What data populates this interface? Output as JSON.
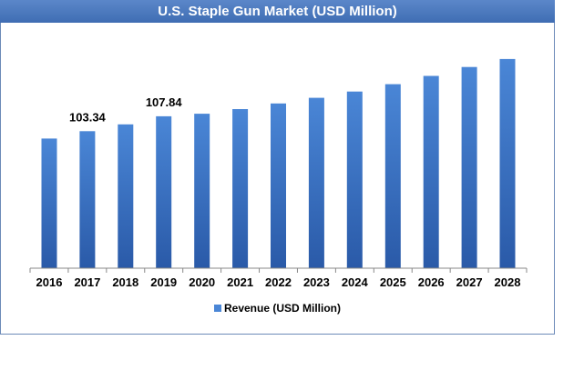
{
  "chart_data": {
    "type": "bar",
    "title": "U.S. Staple Gun Market (USD Million)",
    "categories": [
      "2016",
      "2017",
      "2018",
      "2019",
      "2020",
      "2021",
      "2022",
      "2023",
      "2024",
      "2025",
      "2026",
      "2027",
      "2028"
    ],
    "series": [
      {
        "name": "Revenue (USD Million)",
        "values": [
          101.1,
          103.34,
          105.4,
          107.84,
          108.6,
          110.0,
          111.7,
          113.4,
          115.3,
          117.5,
          120.0,
          122.7,
          125.1
        ],
        "data_labels": {
          "1": "103.34",
          "3": "107.84"
        }
      }
    ],
    "xlabel": "",
    "ylabel": "",
    "ylim": [
      62,
      127
    ],
    "grid": false,
    "legend_position": "bottom",
    "colors": {
      "bar_top": "#4a86d6",
      "bar_bottom": "#2a5aa8",
      "axis": "#888888"
    }
  }
}
